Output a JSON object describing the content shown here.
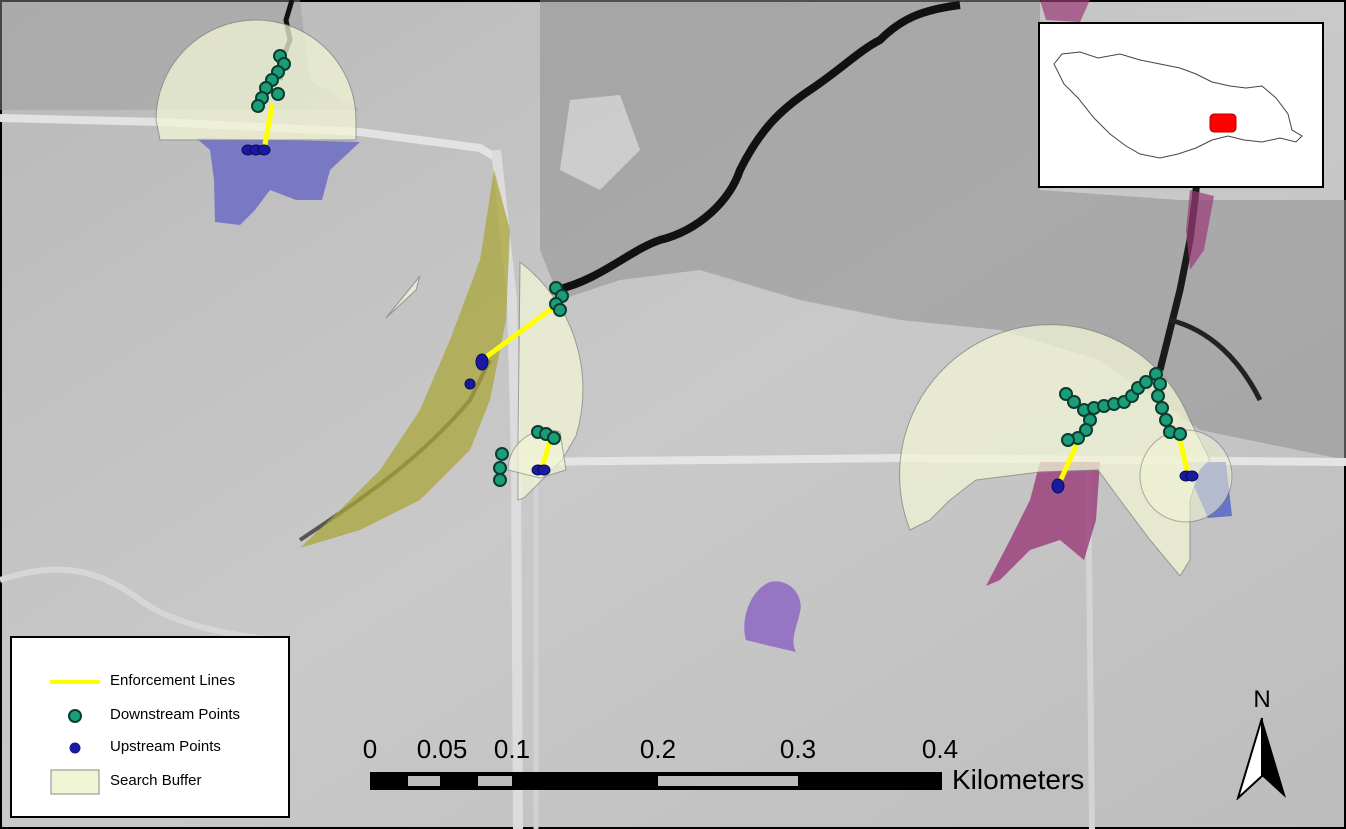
{
  "legend": {
    "items": [
      {
        "label": "Enforcement Lines",
        "symbol": "yellow-line-icon",
        "color": "#FFFF00"
      },
      {
        "label": "Downstream Points",
        "symbol": "green-circle-icon",
        "color": "#1A9E7A"
      },
      {
        "label": "Upstream Points",
        "symbol": "blue-circle-icon",
        "color": "#1A1AA0"
      },
      {
        "label": "Search Buffer",
        "symbol": "pale-yellow-box-icon",
        "color": "#F2F5D5"
      }
    ]
  },
  "scale_bar": {
    "ticks": [
      "0",
      "0.05",
      "0.1",
      "0.2",
      "0.3",
      "0.4"
    ],
    "units": "Kilometers"
  },
  "north_arrow": {
    "label": "N"
  },
  "colors": {
    "enforcement_line": "#FFFF00",
    "downstream_point": "#1A9E7A",
    "upstream_point": "#1A1AA0",
    "search_buffer": "#F2F5D5",
    "inset_highlight": "#FF0000"
  }
}
